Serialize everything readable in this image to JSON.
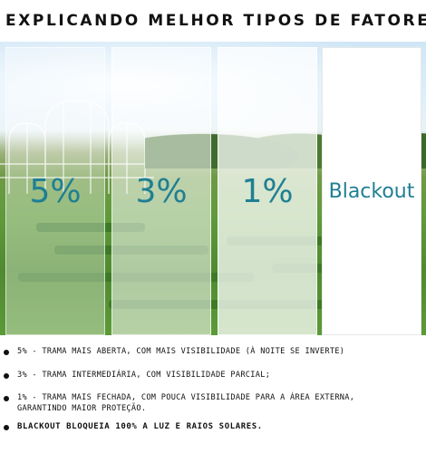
{
  "title": "EXPLICANDO MELHOR TIPOS DE FATORES",
  "panels": [
    {
      "label": "5%"
    },
    {
      "label": "3%"
    },
    {
      "label": "1%"
    },
    {
      "label": "Blackout"
    }
  ],
  "legend": [
    {
      "text": "5% - TRAMA MAIS ABERTA, COM MAIS VISIBILIDADE (À NOITE SE INVERTE)"
    },
    {
      "text": "3% - TRAMA INTERMEDIÁRIA, COM VISIBILIDADE PARCIAL;"
    },
    {
      "text": "1% - TRAMA MAIS FECHADA, COM POUCA VISIBILIDADE PARA A ÁREA EXTERNA,\nGARANTINDO MAIOR PROTEÇÃO."
    },
    {
      "text": "BLACKOUT BLOQUEIA 100% A LUZ E RAIOS SOLARES."
    }
  ],
  "colors": {
    "label_color": "#1f7f93",
    "title_color": "#111111"
  }
}
